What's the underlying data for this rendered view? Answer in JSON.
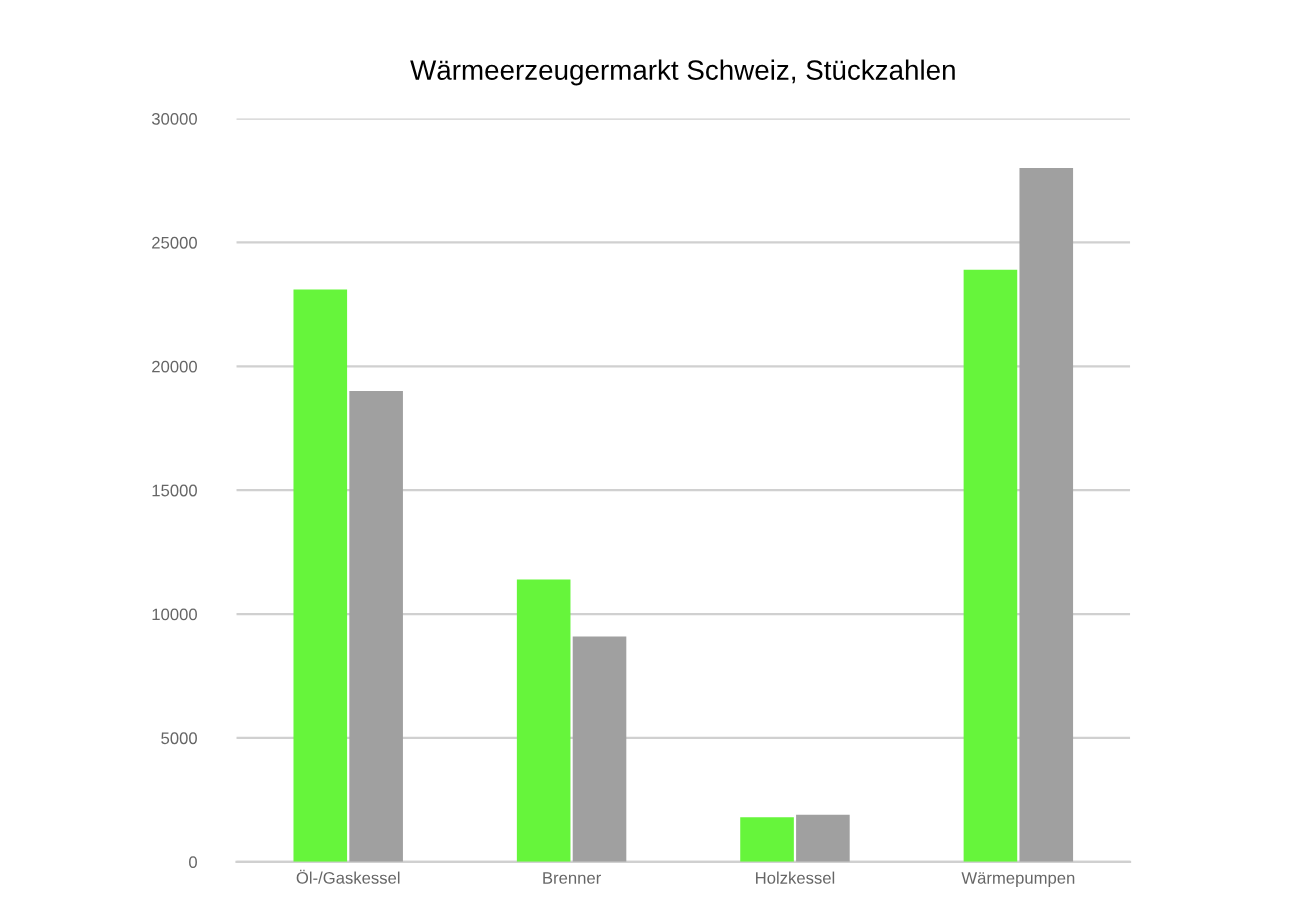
{
  "chart_data": {
    "type": "bar",
    "title": "Wärmeerzeugermarkt Schweiz, Stückzahlen",
    "categories": [
      "Öl-/Gaskessel",
      "Brenner",
      "Holzkessel",
      "Wärmepumpen"
    ],
    "series": [
      {
        "color": "#66f53b",
        "values": [
          23100,
          11400,
          1800,
          23900
        ]
      },
      {
        "color": "#a0a0a0",
        "values": [
          19000,
          9100,
          1900,
          28000
        ]
      }
    ],
    "ylim": [
      0,
      30000
    ],
    "yticks": [
      0,
      5000,
      10000,
      15000,
      20000,
      25000,
      30000
    ],
    "grid": "y",
    "legend": false
  }
}
